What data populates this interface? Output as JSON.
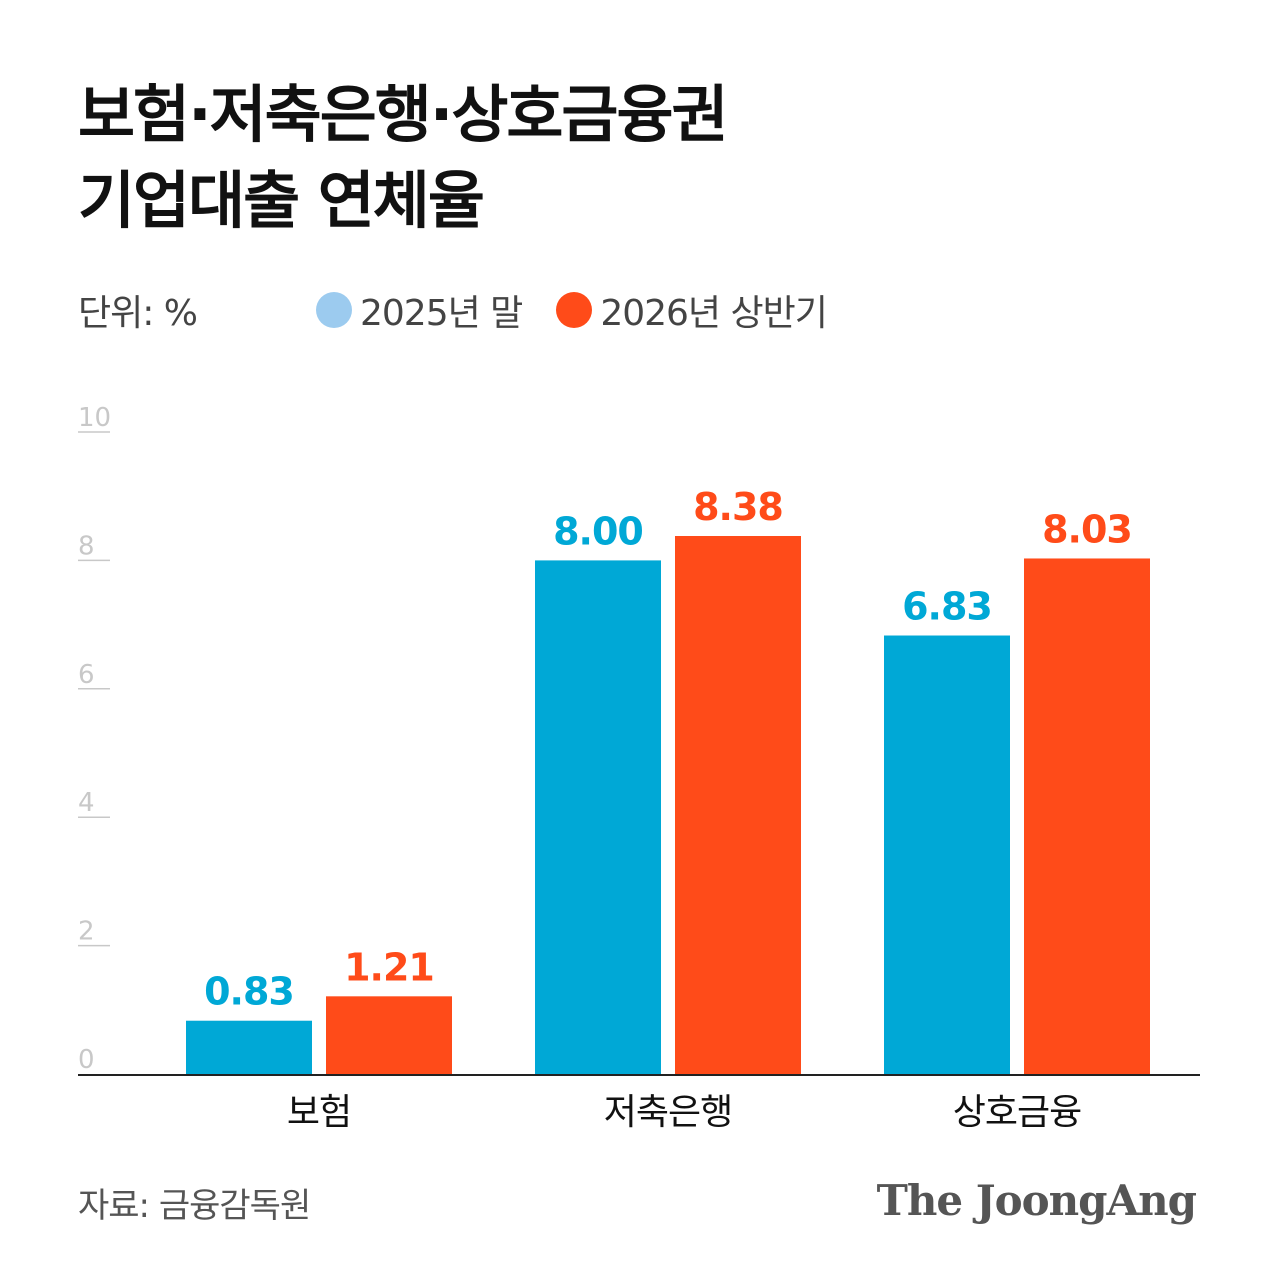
{
  "title_line1": "보험·저축은행·상호금융권",
  "title_line2": "기업대출 연체율",
  "unit_label": "단위: %",
  "source": "자료: 금융감독원",
  "brand": "The JoongAng",
  "colors": {
    "series1": "#00a8d6",
    "series2": "#ff4b19",
    "legend_dot1": "#9ccbef",
    "axis": "#222222",
    "tick": "#c8c8c8"
  },
  "chart_data": {
    "type": "bar",
    "categories": [
      "보험",
      "저축은행",
      "상호금융"
    ],
    "series": [
      {
        "name": "2025년 말",
        "values": [
          0.83,
          8.0,
          6.83
        ],
        "labels": [
          "0.83",
          "8.00",
          "6.83"
        ]
      },
      {
        "name": "2026년 상반기",
        "values": [
          1.21,
          8.38,
          8.03
        ],
        "labels": [
          "1.21",
          "8.38",
          "8.03"
        ]
      }
    ],
    "ylim": [
      0,
      10
    ],
    "yticks": [
      "0",
      "2",
      "4",
      "6",
      "8",
      "10"
    ],
    "grid": false,
    "legend": "top"
  }
}
